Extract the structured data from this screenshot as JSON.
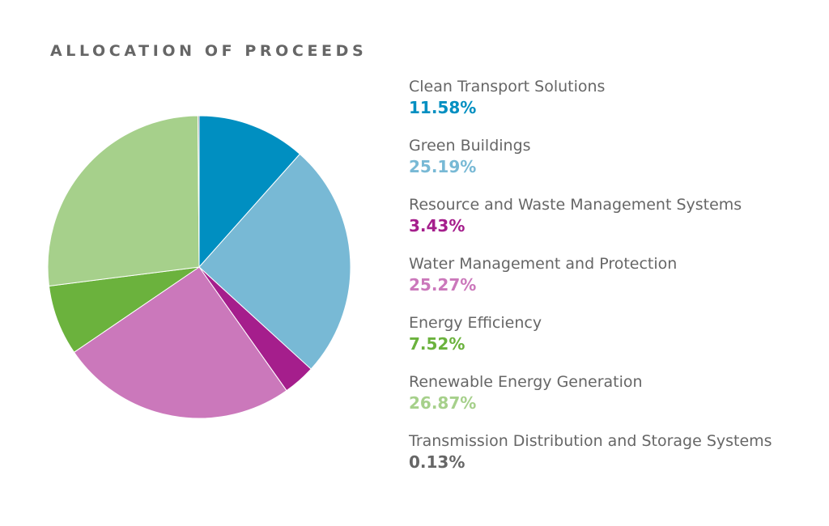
{
  "chart_data": {
    "type": "pie",
    "title": "ALLOCATION OF PROCEEDS",
    "legend_position": "right",
    "slices": [
      {
        "label": "Clean Transport Solutions",
        "value": 11.58,
        "display": "11.58%",
        "color": "#008fc1"
      },
      {
        "label": "Green Buildings",
        "value": 25.19,
        "display": "25.19%",
        "color": "#78b9d5"
      },
      {
        "label": "Resource and Waste Management Systems",
        "value": 3.43,
        "display": "3.43%",
        "color": "#a51e8c"
      },
      {
        "label": "Water Management and Protection",
        "value": 25.27,
        "display": "25.27%",
        "color": "#cb78bb"
      },
      {
        "label": "Energy Efficiency",
        "value": 7.52,
        "display": "7.52%",
        "color": "#6bb23d"
      },
      {
        "label": "Renewable Energy Generation",
        "value": 26.87,
        "display": "26.87%",
        "color": "#a6d08b"
      },
      {
        "label": "Transmission Distribution and Storage Systems",
        "value": 0.13,
        "display": "0.13%",
        "color": "#666666"
      }
    ]
  }
}
